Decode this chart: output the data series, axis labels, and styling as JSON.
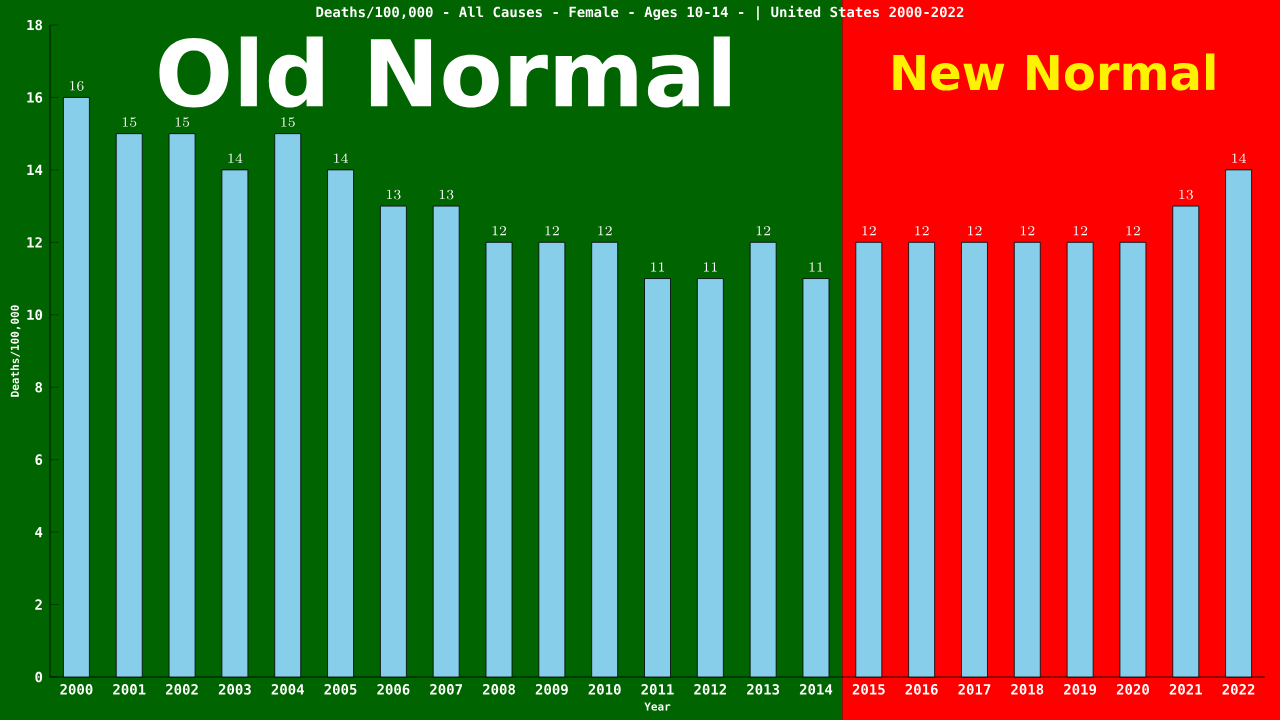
{
  "chart_data": {
    "type": "bar",
    "title": "Deaths/100,000 - All Causes - Female - Ages 10-14 -  | United States 2000-2022",
    "xlabel": "Year",
    "ylabel": "Deaths/100,000",
    "categories": [
      "2000",
      "2001",
      "2002",
      "2003",
      "2004",
      "2005",
      "2006",
      "2007",
      "2008",
      "2009",
      "2010",
      "2011",
      "2012",
      "2013",
      "2014",
      "2015",
      "2016",
      "2017",
      "2018",
      "2019",
      "2020",
      "2021",
      "2022"
    ],
    "values": [
      16,
      15,
      15,
      14,
      15,
      14,
      13,
      13,
      12,
      12,
      12,
      11,
      11,
      12,
      11,
      12,
      12,
      12,
      12,
      12,
      12,
      13,
      14
    ],
    "color": "#87ceeb",
    "ylim": [
      0,
      18
    ],
    "yticks": [
      0,
      2,
      4,
      6,
      8,
      10,
      12,
      14,
      16,
      18
    ],
    "data_labels": true,
    "bands": [
      {
        "axis": "x",
        "from": "2000",
        "to": "2014",
        "label": "Old Normal",
        "color": "#006400"
      },
      {
        "axis": "x",
        "from": "2015",
        "to": "2022",
        "label": "New Normal",
        "color": "#ff0000"
      }
    ]
  }
}
